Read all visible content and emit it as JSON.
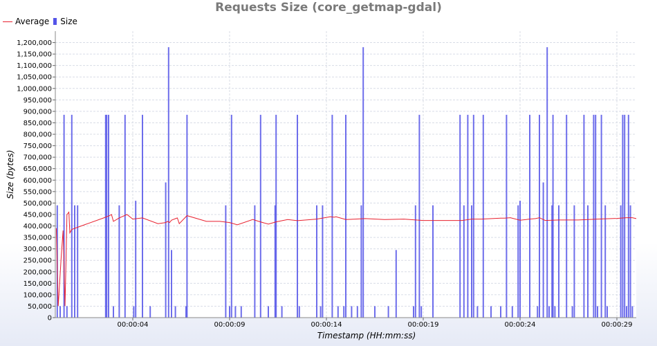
{
  "chart_data": {
    "type": "bar",
    "title": "Requests Size (core_getmap-gdal)",
    "xlabel": "Timestamp (HH:mm:ss)",
    "ylabel": "Size (bytes)",
    "ylim": [
      0,
      1250000
    ],
    "xlim": [
      0,
      30
    ],
    "y_ticks": [
      0,
      50000,
      100000,
      150000,
      200000,
      250000,
      300000,
      350000,
      400000,
      450000,
      500000,
      550000,
      600000,
      650000,
      700000,
      750000,
      800000,
      850000,
      900000,
      950000,
      1000000,
      1050000,
      1100000,
      1150000,
      1200000
    ],
    "y_tick_labels": [
      "0",
      "50,000",
      "100,000",
      "150,000",
      "200,000",
      "250,000",
      "300,000",
      "350,000",
      "400,000",
      "450,000",
      "500,000",
      "550,000",
      "600,000",
      "650,000",
      "700,000",
      "750,000",
      "800,000",
      "850,000",
      "900,000",
      "950,000",
      "1,000,000",
      "1,050,000",
      "1,100,000",
      "1,150,000",
      "1,200,000"
    ],
    "x_ticks": [
      4,
      9,
      14,
      19,
      24,
      29
    ],
    "x_tick_labels": [
      "00:00:04",
      "00:00:09",
      "00:00:14",
      "00:00:19",
      "00:00:24",
      "00:00:29"
    ],
    "grid": true,
    "legend_position": "top-left",
    "series": [
      {
        "name": "Average",
        "type": "line",
        "color": "#e81f2d",
        "x": [
          0.05,
          0.15,
          0.3,
          0.4,
          0.5,
          0.55,
          0.6,
          0.7,
          0.75,
          0.85,
          1.5,
          2.5,
          2.8,
          2.9,
          3.0,
          3.3,
          3.7,
          4.0,
          4.5,
          5.3,
          5.7,
          5.8,
          5.9,
          6.0,
          6.3,
          6.4,
          6.8,
          7.8,
          8.2,
          8.5,
          9.0,
          9.4,
          10.2,
          10.5,
          11.0,
          11.4,
          12.0,
          12.5,
          13.5,
          14.2,
          14.4,
          14.5,
          15.0,
          15.5,
          16.0,
          17.0,
          18.0,
          19.0,
          20.0,
          20.5,
          21.0,
          21.5,
          22.0,
          23.0,
          23.2,
          23.5,
          24.0,
          24.5,
          24.8,
          25.0,
          25.3,
          26.0,
          26.5,
          27.0,
          27.5,
          28.0,
          29.0,
          29.5,
          29.8,
          30.0
        ],
        "values": [
          390000,
          50000,
          260000,
          380000,
          50000,
          240000,
          450000,
          460000,
          370000,
          385000,
          405000,
          435000,
          445000,
          450000,
          420000,
          435000,
          450000,
          430000,
          435000,
          410000,
          415000,
          420000,
          415000,
          425000,
          435000,
          410000,
          445000,
          420000,
          420000,
          420000,
          415000,
          405000,
          428000,
          420000,
          408000,
          418000,
          428000,
          423000,
          430000,
          440000,
          438000,
          440000,
          428000,
          430000,
          432000,
          428000,
          430000,
          424000,
          424000,
          424000,
          424000,
          430000,
          430000,
          434000,
          434000,
          436000,
          425000,
          430000,
          432000,
          436000,
          424000,
          426000,
          426000,
          426000,
          428000,
          430000,
          433000,
          436000,
          436000,
          432000
        ]
      },
      {
        "name": "Size",
        "type": "bar",
        "color": "#5454e8",
        "x": [
          0.1,
          0.25,
          0.45,
          0.6,
          0.85,
          1.0,
          1.15,
          2.6,
          2.65,
          2.75,
          3.0,
          3.3,
          3.6,
          4.05,
          4.15,
          4.5,
          4.9,
          5.7,
          5.85,
          6.0,
          6.2,
          6.75,
          6.8,
          8.8,
          9.0,
          9.1,
          9.3,
          9.6,
          10.3,
          10.6,
          11.0,
          11.35,
          11.4,
          11.7,
          12.5,
          12.6,
          13.5,
          13.7,
          13.8,
          14.3,
          14.6,
          14.9,
          15.0,
          15.3,
          15.6,
          15.8,
          15.9,
          16.5,
          17.2,
          17.6,
          18.5,
          18.6,
          18.8,
          18.9,
          19.5,
          20.9,
          21.1,
          21.3,
          21.5,
          21.6,
          21.8,
          22.1,
          22.5,
          23.0,
          23.3,
          23.6,
          23.9,
          24.0,
          24.5,
          24.9,
          25.0,
          25.2,
          25.4,
          25.5,
          25.65,
          25.7,
          25.8,
          26.0,
          26.4,
          26.7,
          26.8,
          27.3,
          27.5,
          27.8,
          27.9,
          28.0,
          28.2,
          28.4,
          28.5,
          29.2,
          29.3,
          29.4,
          29.5,
          29.6,
          29.7,
          29.8
        ],
        "values": [
          490000,
          50000,
          885000,
          50000,
          885000,
          490000,
          490000,
          885000,
          885000,
          885000,
          50000,
          490000,
          885000,
          50000,
          510000,
          885000,
          50000,
          590000,
          1180000,
          295000,
          50000,
          50000,
          885000,
          490000,
          50000,
          885000,
          50000,
          50000,
          490000,
          885000,
          50000,
          490000,
          885000,
          50000,
          885000,
          50000,
          490000,
          50000,
          490000,
          885000,
          50000,
          50000,
          885000,
          50000,
          50000,
          490000,
          1180000,
          50000,
          50000,
          295000,
          50000,
          490000,
          885000,
          50000,
          490000,
          885000,
          490000,
          885000,
          490000,
          885000,
          50000,
          885000,
          50000,
          50000,
          885000,
          50000,
          490000,
          510000,
          885000,
          50000,
          885000,
          590000,
          1180000,
          50000,
          490000,
          885000,
          50000,
          490000,
          885000,
          50000,
          490000,
          885000,
          490000,
          885000,
          885000,
          50000,
          885000,
          490000,
          50000,
          490000,
          885000,
          885000,
          50000,
          885000,
          490000,
          50000
        ]
      }
    ]
  }
}
